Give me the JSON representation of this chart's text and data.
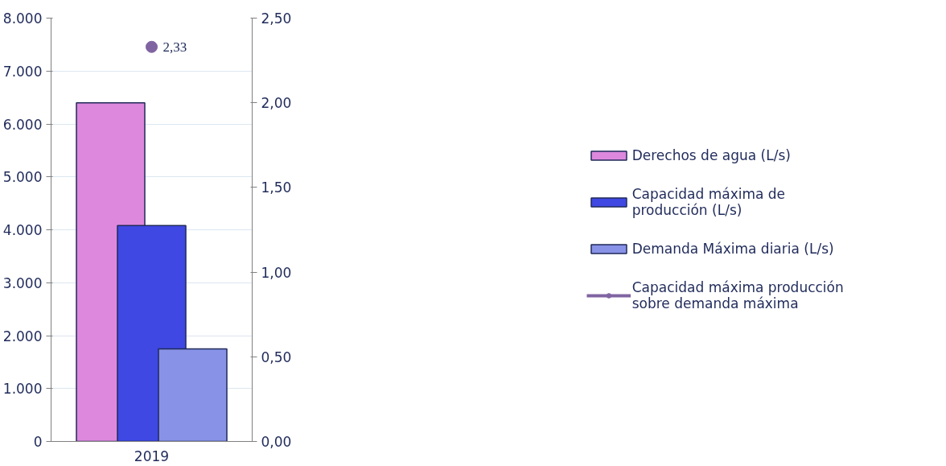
{
  "chart_data": {
    "type": "bar",
    "categories": [
      "2019"
    ],
    "series": [
      {
        "name": "Derechos de agua (L/s)",
        "color": "#dd88dd",
        "values": [
          6400
        ]
      },
      {
        "name": "Capacidad máxima de producción (L/s)",
        "color": "#3f48e2",
        "values": [
          4080
        ]
      },
      {
        "name": "Demanda Máxima diaria (L/s)",
        "color": "#8892e6",
        "values": [
          1750
        ]
      },
      {
        "name": "Capacidad máxima producción sobre demanda máxima",
        "type": "line",
        "marker": "circle",
        "axis": "y2",
        "color": "#8064a2",
        "values": [
          2.33
        ],
        "value_labels": [
          "2,33"
        ]
      }
    ],
    "ylim": [
      0,
      8000
    ],
    "yticks": [
      {
        "value": 0,
        "label": "0"
      },
      {
        "value": 1000,
        "label": "1.000"
      },
      {
        "value": 2000,
        "label": "2.000"
      },
      {
        "value": 3000,
        "label": "3.000"
      },
      {
        "value": 4000,
        "label": "4.000"
      },
      {
        "value": 5000,
        "label": "5.000"
      },
      {
        "value": 6000,
        "label": "6.000"
      },
      {
        "value": 7000,
        "label": "7.000"
      },
      {
        "value": 8000,
        "label": "8.000"
      }
    ],
    "y2lim": [
      0,
      2.5
    ],
    "y2ticks": [
      {
        "value": 0,
        "label": "0,00"
      },
      {
        "value": 0.5,
        "label": "0,50"
      },
      {
        "value": 1,
        "label": "1,00"
      },
      {
        "value": 1.5,
        "label": "1,50"
      },
      {
        "value": 2,
        "label": "2,00"
      },
      {
        "value": 2.5,
        "label": "2,50"
      }
    ],
    "grid": "y",
    "legend": "right"
  }
}
